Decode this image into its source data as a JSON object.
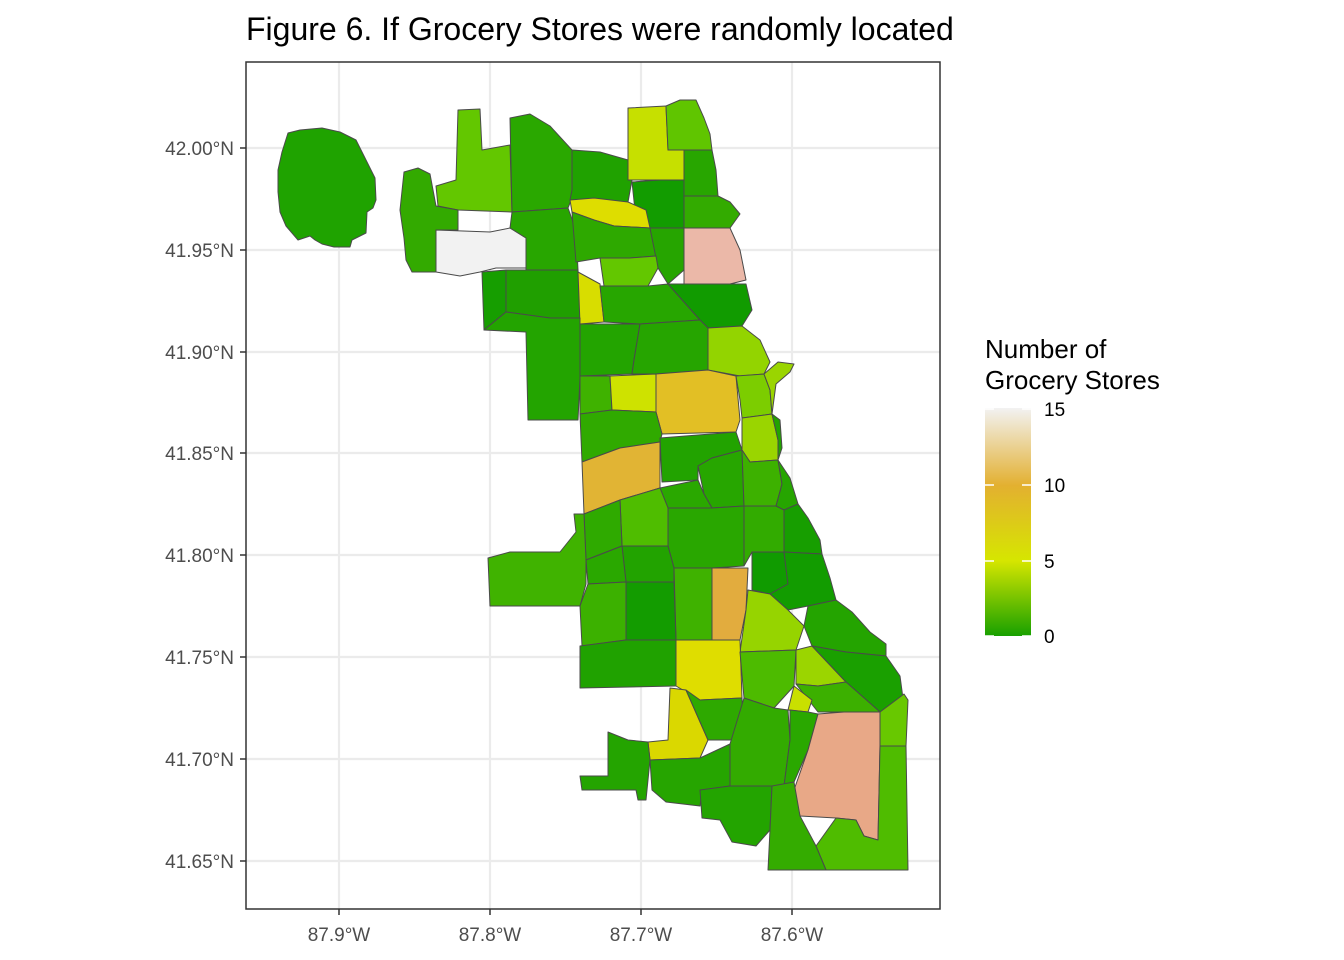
{
  "title": "Figure 6. If Grocery Stores were randomly located",
  "axes": {
    "x_ticks": [
      "87.9°W",
      "87.8°W",
      "87.7°W",
      "87.6°W"
    ],
    "y_ticks": [
      "42.00°N",
      "41.95°N",
      "41.90°N",
      "41.85°N",
      "41.80°N",
      "41.75°N",
      "41.70°N",
      "41.65°N"
    ]
  },
  "legend": {
    "title_line1": "Number of",
    "title_line2": "Grocery Stores",
    "ticks": [
      "15",
      "10",
      "5",
      "0"
    ],
    "colors": {
      "c0": "#18a000",
      "c5": "#d6e600",
      "c10": "#e3b030",
      "c15": "#f2f2f2"
    }
  },
  "chart_data": {
    "type": "choropleth",
    "title": "Figure 6. If Grocery Stores were randomly located",
    "xlabel": "",
    "ylabel": "",
    "x_ticks": [
      "87.9°W",
      "87.8°W",
      "87.7°W",
      "87.6°W"
    ],
    "y_ticks": [
      "42.00°N",
      "41.95°N",
      "41.90°N",
      "41.85°N",
      "41.80°N",
      "41.75°N",
      "41.70°N",
      "41.65°N"
    ],
    "color_scale": {
      "title": "Number of Grocery Stores",
      "min": 0,
      "max": 15,
      "ticks": [
        0,
        5,
        10,
        15
      ]
    },
    "regions_value_range": [
      0,
      15
    ],
    "notes": "Chicago community areas shaded by simulated number of grocery stores"
  }
}
